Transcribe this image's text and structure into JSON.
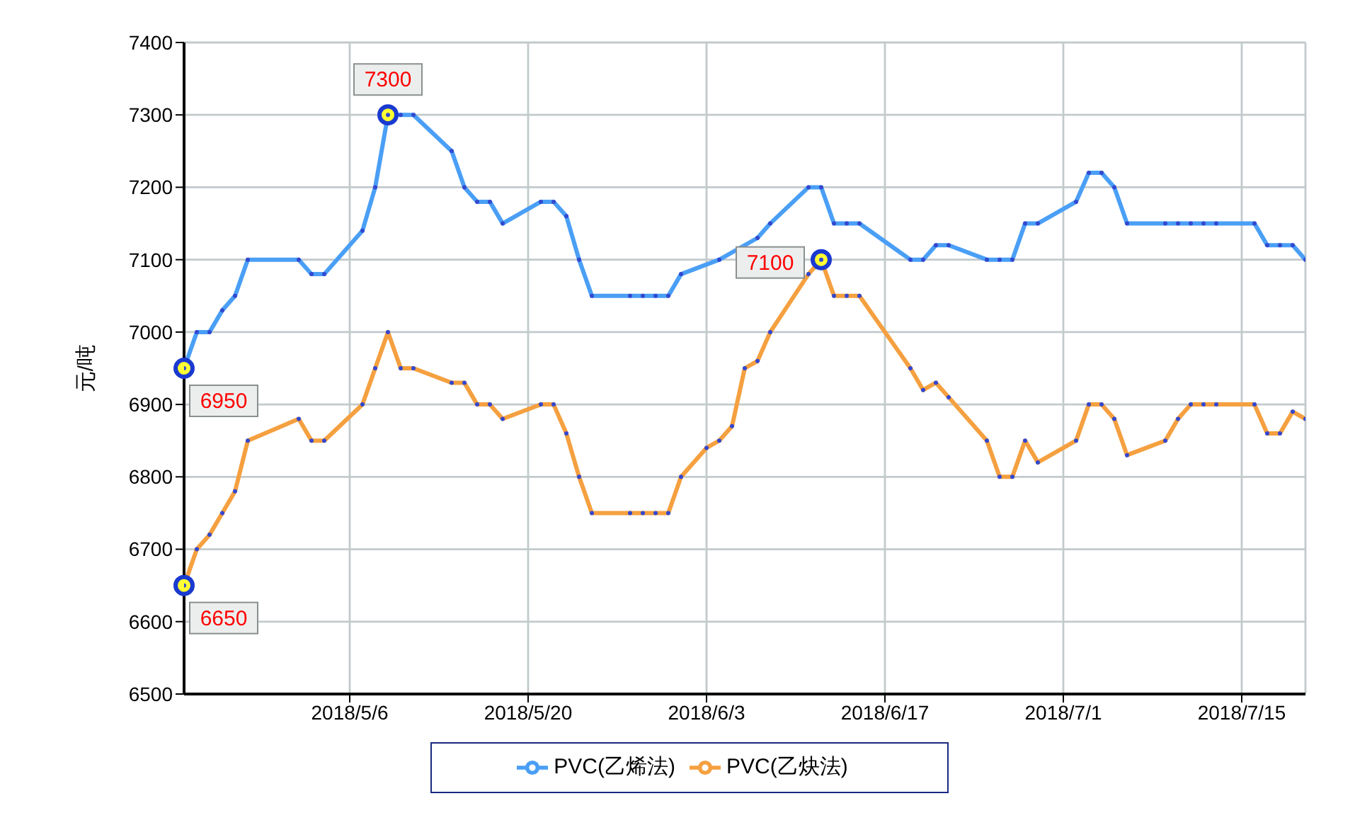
{
  "chart_data": {
    "type": "line",
    "ylabel": "元/吨",
    "xlim": [
      "2018-04-23",
      "2018-07-20"
    ],
    "xticks": [
      {
        "value": "2018-05-06",
        "label": "2018/5/6"
      },
      {
        "value": "2018-05-20",
        "label": "2018/5/20"
      },
      {
        "value": "2018-06-03",
        "label": "2018/6/3"
      },
      {
        "value": "2018-06-17",
        "label": "2018/6/17"
      },
      {
        "value": "2018-07-01",
        "label": "2018/7/1"
      },
      {
        "value": "2018-07-15",
        "label": "2018/7/15"
      }
    ],
    "ylim": [
      6500,
      7400
    ],
    "yticks": [
      6500,
      6600,
      6700,
      6800,
      6900,
      7000,
      7100,
      7200,
      7300,
      7400
    ],
    "grid": true,
    "legend": "bottom",
    "marker": "circle",
    "line_style": "solid",
    "series": [
      {
        "name": "PVC(乙烯法)",
        "color": "#4a9ff5",
        "x": [
          "2018-04-23",
          "2018-04-24",
          "2018-04-25",
          "2018-04-26",
          "2018-04-27",
          "2018-04-28",
          "2018-05-02",
          "2018-05-03",
          "2018-05-04",
          "2018-05-07",
          "2018-05-08",
          "2018-05-09",
          "2018-05-10",
          "2018-05-11",
          "2018-05-14",
          "2018-05-15",
          "2018-05-16",
          "2018-05-17",
          "2018-05-18",
          "2018-05-21",
          "2018-05-22",
          "2018-05-23",
          "2018-05-24",
          "2018-05-25",
          "2018-05-28",
          "2018-05-29",
          "2018-05-30",
          "2018-05-31",
          "2018-06-01",
          "2018-06-04",
          "2018-06-07",
          "2018-06-08",
          "2018-06-11",
          "2018-06-12",
          "2018-06-13",
          "2018-06-14",
          "2018-06-15",
          "2018-06-19",
          "2018-06-20",
          "2018-06-21",
          "2018-06-22",
          "2018-06-25",
          "2018-06-26",
          "2018-06-27",
          "2018-06-28",
          "2018-06-29",
          "2018-07-02",
          "2018-07-03",
          "2018-07-04",
          "2018-07-05",
          "2018-07-06",
          "2018-07-09",
          "2018-07-10",
          "2018-07-11",
          "2018-07-12",
          "2018-07-13",
          "2018-07-16",
          "2018-07-17",
          "2018-07-18",
          "2018-07-19",
          "2018-07-20"
        ],
        "values": [
          6950,
          7000,
          7000,
          7030,
          7050,
          7100,
          7100,
          7080,
          7080,
          7140,
          7200,
          7300,
          7300,
          7300,
          7250,
          7200,
          7180,
          7180,
          7150,
          7180,
          7180,
          7160,
          7100,
          7050,
          7050,
          7050,
          7050,
          7050,
          7080,
          7100,
          7130,
          7150,
          7200,
          7200,
          7150,
          7150,
          7150,
          7100,
          7100,
          7120,
          7120,
          7100,
          7100,
          7100,
          7150,
          7150,
          7180,
          7220,
          7220,
          7200,
          7150,
          7150,
          7150,
          7150,
          7150,
          7150,
          7150,
          7120,
          7120,
          7120,
          7100
        ]
      },
      {
        "name": "PVC(乙炔法)",
        "color": "#f5a040",
        "x": [
          "2018-04-23",
          "2018-04-24",
          "2018-04-25",
          "2018-04-26",
          "2018-04-27",
          "2018-04-28",
          "2018-05-02",
          "2018-05-03",
          "2018-05-04",
          "2018-05-07",
          "2018-05-08",
          "2018-05-09",
          "2018-05-10",
          "2018-05-11",
          "2018-05-14",
          "2018-05-15",
          "2018-05-16",
          "2018-05-17",
          "2018-05-18",
          "2018-05-21",
          "2018-05-22",
          "2018-05-23",
          "2018-05-24",
          "2018-05-25",
          "2018-05-28",
          "2018-05-29",
          "2018-05-30",
          "2018-05-31",
          "2018-06-01",
          "2018-06-03",
          "2018-06-04",
          "2018-06-05",
          "2018-06-06",
          "2018-06-07",
          "2018-06-08",
          "2018-06-11",
          "2018-06-12",
          "2018-06-13",
          "2018-06-14",
          "2018-06-15",
          "2018-06-19",
          "2018-06-20",
          "2018-06-21",
          "2018-06-22",
          "2018-06-25",
          "2018-06-26",
          "2018-06-27",
          "2018-06-28",
          "2018-06-29",
          "2018-07-02",
          "2018-07-03",
          "2018-07-04",
          "2018-07-05",
          "2018-07-06",
          "2018-07-09",
          "2018-07-10",
          "2018-07-11",
          "2018-07-12",
          "2018-07-13",
          "2018-07-16",
          "2018-07-17",
          "2018-07-18",
          "2018-07-19",
          "2018-07-20"
        ],
        "values": [
          6650,
          6700,
          6720,
          6750,
          6780,
          6850,
          6880,
          6850,
          6850,
          6900,
          6950,
          7000,
          6950,
          6950,
          6930,
          6930,
          6900,
          6900,
          6880,
          6900,
          6900,
          6860,
          6800,
          6750,
          6750,
          6750,
          6750,
          6750,
          6800,
          6840,
          6850,
          6870,
          6950,
          6960,
          7000,
          7080,
          7100,
          7050,
          7050,
          7050,
          6950,
          6920,
          6930,
          6910,
          6850,
          6800,
          6800,
          6850,
          6820,
          6850,
          6900,
          6900,
          6880,
          6830,
          6850,
          6880,
          6900,
          6900,
          6900,
          6900,
          6860,
          6860,
          6890,
          6880
        ]
      }
    ],
    "annotations": [
      {
        "text": "6950",
        "x": "2018-04-23",
        "y": 6950
      },
      {
        "text": "7300",
        "x": "2018-05-09",
        "y": 7300
      },
      {
        "text": "7100",
        "x": "2018-06-12",
        "y": 7100
      },
      {
        "text": "6650",
        "x": "2018-04-23",
        "y": 6650
      }
    ]
  }
}
